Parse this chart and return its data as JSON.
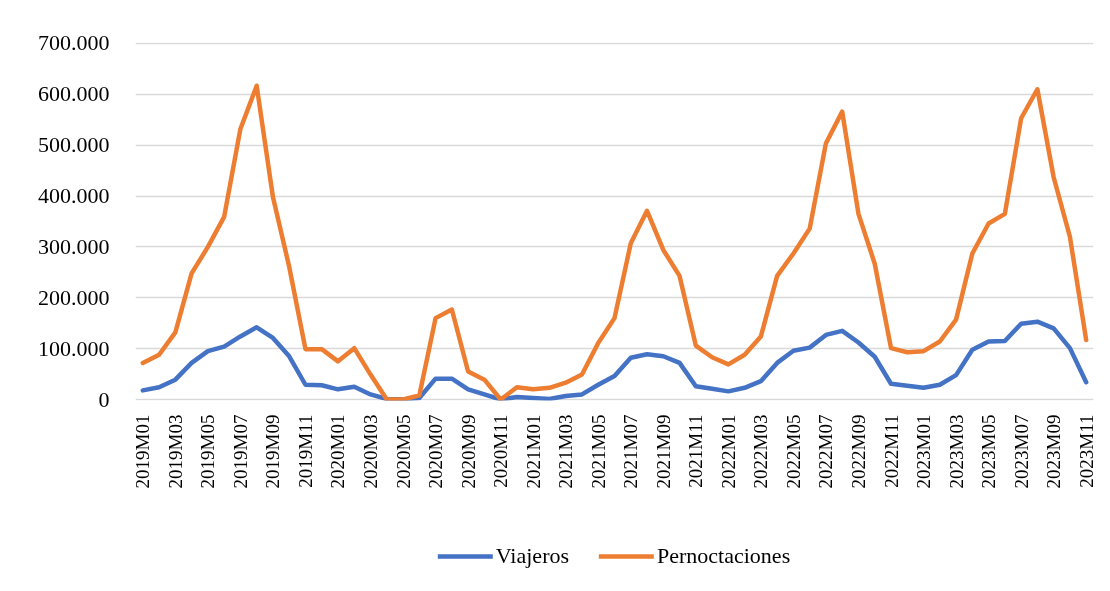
{
  "chart_data": {
    "type": "line",
    "categories": [
      "2019M01",
      null,
      "2019M03",
      null,
      "2019M05",
      null,
      "2019M07",
      null,
      "2019M09",
      null,
      "2019M11",
      null,
      "2020M01",
      null,
      "2020M03",
      null,
      "2020M05",
      null,
      "2020M07",
      null,
      "2020M09",
      null,
      "2020M11",
      null,
      "2021M01",
      null,
      "2021M03",
      null,
      "2021M05",
      null,
      "2021M07",
      null,
      "2021M09",
      null,
      "2021M11",
      null,
      "2022M01",
      null,
      "2022M03",
      null,
      "2022M05",
      null,
      "2022M07",
      null,
      "2022M09",
      null,
      "2022M11",
      null,
      "2023M01",
      null,
      "2023M03",
      null,
      "2023M05",
      null,
      "2023M07",
      null,
      "2023M09",
      null,
      "2023M11"
    ],
    "series": [
      {
        "name": "Viajeros",
        "color": "#4472c4",
        "values": [
          18000,
          24000,
          39000,
          72000,
          95000,
          104000,
          124000,
          142000,
          121000,
          85000,
          29000,
          28000,
          20000,
          25000,
          10000,
          1000,
          0,
          3000,
          41000,
          41000,
          20000,
          10000,
          0,
          5000,
          3000,
          1000,
          7000,
          10000,
          29000,
          46000,
          82000,
          89000,
          85000,
          72000,
          26000,
          21000,
          16000,
          23000,
          36000,
          72000,
          96000,
          102000,
          127000,
          135000,
          112000,
          84000,
          31000,
          27000,
          23000,
          29000,
          48000,
          98000,
          114000,
          115000,
          149000,
          153000,
          140000,
          101000,
          34000
        ]
      },
      {
        "name": "Pernoctaciones",
        "color": "#ed7d31",
        "values": [
          72000,
          88000,
          132000,
          248000,
          300000,
          359000,
          532000,
          617000,
          398000,
          261000,
          99000,
          99000,
          75000,
          101000,
          49000,
          0,
          0,
          8000,
          160000,
          177000,
          55000,
          39000,
          0,
          24000,
          20000,
          23000,
          33000,
          49000,
          111000,
          160000,
          307000,
          371000,
          294000,
          243000,
          106000,
          83000,
          69000,
          88000,
          124000,
          243000,
          287000,
          336000,
          504000,
          566000,
          365000,
          267000,
          101000,
          93000,
          95000,
          114000,
          157000,
          287000,
          346000,
          365000,
          553000,
          610000,
          437000,
          320000,
          117000
        ]
      }
    ],
    "ylim": [
      0,
      700000
    ],
    "yticks": [
      0,
      {
        "value": 100000,
        "label": "100.000"
      },
      {
        "value": 200000,
        "label": "200.000"
      },
      {
        "value": 300000,
        "label": "300.000"
      },
      {
        "value": 400000,
        "label": "400.000"
      },
      {
        "value": 500000,
        "label": "500.000"
      },
      {
        "value": 600000,
        "label": "600.000"
      },
      {
        "value": 700000,
        "label": "700.000"
      }
    ],
    "grid": "y",
    "legend": "bottom",
    "line_style": "solid"
  }
}
